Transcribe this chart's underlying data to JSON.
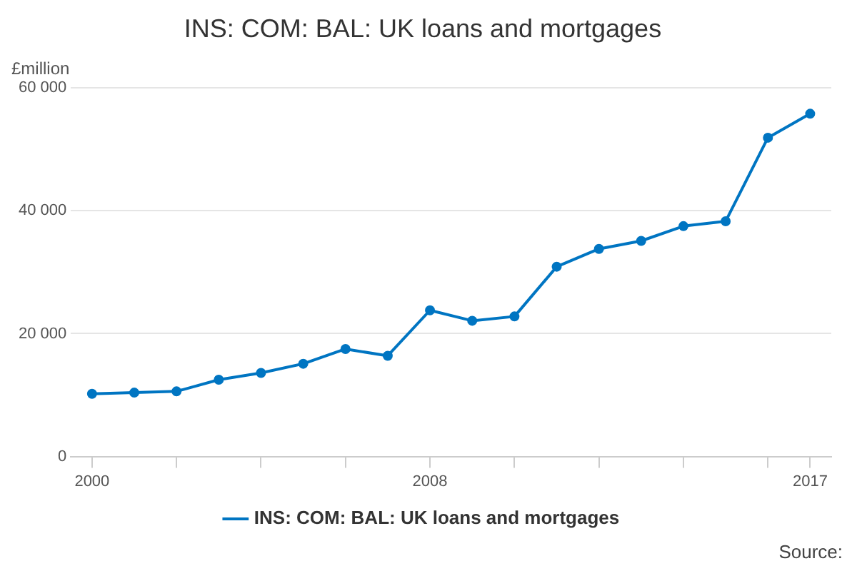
{
  "chart_data": {
    "type": "line",
    "title": "INS: COM: BAL: UK loans and mortgages",
    "ylabel": "£million",
    "x": [
      2000,
      2001,
      2002,
      2003,
      2004,
      2005,
      2006,
      2007,
      2008,
      2009,
      2010,
      2011,
      2012,
      2013,
      2014,
      2015,
      2016,
      2017
    ],
    "series": [
      {
        "name": "INS: COM: BAL: UK loans and mortgages",
        "color": "#0075c2",
        "values": [
          10200,
          10400,
          10600,
          12500,
          13600,
          15100,
          17500,
          16400,
          23800,
          22100,
          22800,
          30900,
          33800,
          35100,
          37500,
          38300,
          51900,
          55800
        ]
      }
    ],
    "xlim": [
      1999.5,
      2017.5
    ],
    "xticks": [
      2000,
      {
        "value": 2002,
        "label": null
      },
      {
        "value": 2004,
        "label": null
      },
      {
        "value": 2006,
        "label": null
      },
      2008,
      {
        "value": 2010,
        "label": null
      },
      {
        "value": 2012,
        "label": null
      },
      {
        "value": 2014,
        "label": null
      },
      {
        "value": 2016,
        "label": null
      },
      2017
    ],
    "ylim": [
      0,
      60000
    ],
    "yticks": [
      0,
      {
        "value": 20000,
        "label": "20 000"
      },
      {
        "value": 40000,
        "label": "40 000"
      },
      {
        "value": 60000,
        "label": "60 000"
      }
    ],
    "grid": "y",
    "legend": "bottom",
    "marker": "circle",
    "line_style": "solid",
    "annotations": [
      "Source:"
    ]
  }
}
